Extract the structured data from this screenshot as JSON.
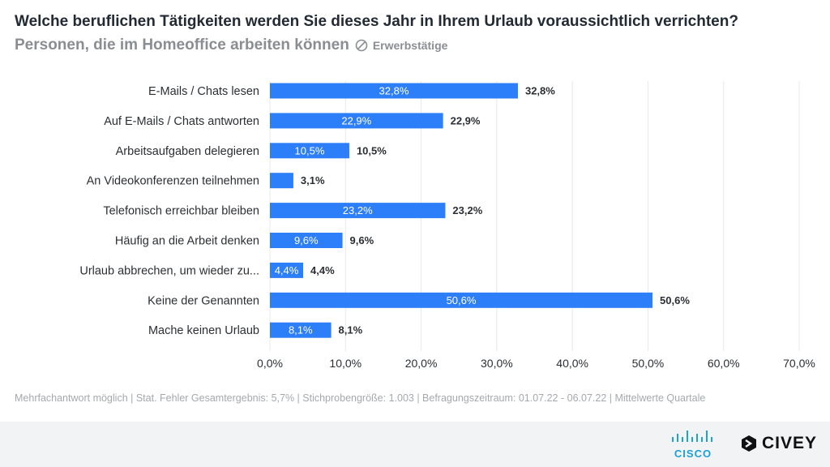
{
  "header": {
    "title": "Welche beruflichen Tätigkeiten werden Sie dieses Jahr in Ihrem Urlaub voraussichtlich verrichten?",
    "subtitle": "Personen, die im Homeoffice arbeiten können",
    "filter_label": "Erwerbstätige"
  },
  "chart_data": {
    "type": "bar",
    "orientation": "horizontal",
    "categories": [
      "E-Mails / Chats lesen",
      "Auf E-Mails / Chats antworten",
      "Arbeitsaufgaben delegieren",
      "An Videokonferenzen teilnehmen",
      "Telefonisch erreichbar bleiben",
      "Häufig an die Arbeit denken",
      "Urlaub abbrechen, um wieder zu...",
      "Keine der Genannten",
      "Mache keinen Urlaub"
    ],
    "values": [
      32.8,
      22.9,
      10.5,
      3.1,
      23.2,
      9.6,
      4.4,
      50.6,
      8.1
    ],
    "value_labels": [
      "32,8%",
      "22,9%",
      "10,5%",
      "3,1%",
      "23,2%",
      "9,6%",
      "4,4%",
      "50,6%",
      "8,1%"
    ],
    "xlim": [
      0,
      70
    ],
    "xticks": [
      0,
      10,
      20,
      30,
      40,
      50,
      60,
      70
    ],
    "xtick_labels": [
      "0,0%",
      "10,0%",
      "20,0%",
      "30,0%",
      "40,0%",
      "50,0%",
      "60,0%",
      "70,0%"
    ],
    "bar_color": "#2d7ff9",
    "grid": true
  },
  "footnote": "Mehrfachantwort möglich | Stat. Fehler Gesamtergebnis: 5,7% | Stichprobengröße: 1.003 | Befragungszeitraum: 01.07.22 - 06.07.22 | Mittelwerte Quartale",
  "footer": {
    "partner_logo": "CISCO",
    "brand_logo": "CIVEY"
  }
}
